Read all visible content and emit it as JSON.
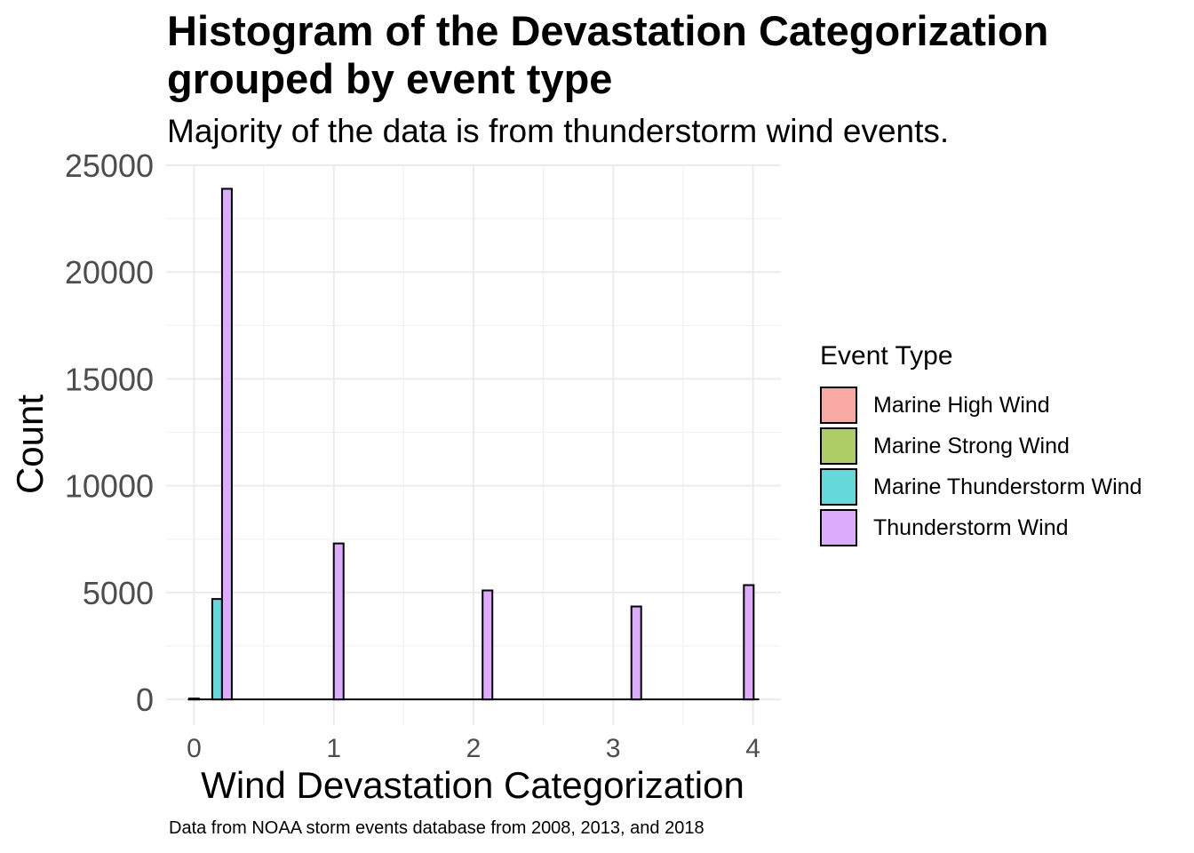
{
  "chart_data": {
    "type": "bar",
    "title": "Histogram of the Devastation Categorization grouped by event type",
    "subtitle": "Majority of the data is from thunderstorm wind events.",
    "xlabel": "Wind Devastation Categorization",
    "ylabel": "Count",
    "caption": "Data from NOAA storm events database from 2008, 2013, and 2018",
    "xlim": [
      -0.2,
      4.2
    ],
    "ylim": [
      -1200,
      25000
    ],
    "x_ticks": [
      "0",
      "1",
      "2",
      "3",
      "4"
    ],
    "y_ticks": [
      "0",
      "5000",
      "10000",
      "15000",
      "20000",
      "25000"
    ],
    "grid": true,
    "legend_position": "right",
    "legend_title": "Event Type",
    "series": [
      {
        "name": "Marine High Wind",
        "color": "#F8A9A3",
        "bars": [
          {
            "x": 0.0,
            "value": 40
          }
        ]
      },
      {
        "name": "Marine Strong Wind",
        "color": "#ADCD67",
        "bars": []
      },
      {
        "name": "Marine Thunderstorm Wind",
        "color": "#63D9DC",
        "bars": [
          {
            "x": 0.165,
            "value": 4700
          }
        ]
      },
      {
        "name": "Thunderstorm Wind",
        "color": "#DCABFC",
        "bars": [
          {
            "x": 0.235,
            "value": 23900
          },
          {
            "x": 1.035,
            "value": 7300
          },
          {
            "x": 2.1,
            "value": 5100
          },
          {
            "x": 3.165,
            "value": 4350
          },
          {
            "x": 3.97,
            "value": 5350
          }
        ]
      }
    ]
  }
}
